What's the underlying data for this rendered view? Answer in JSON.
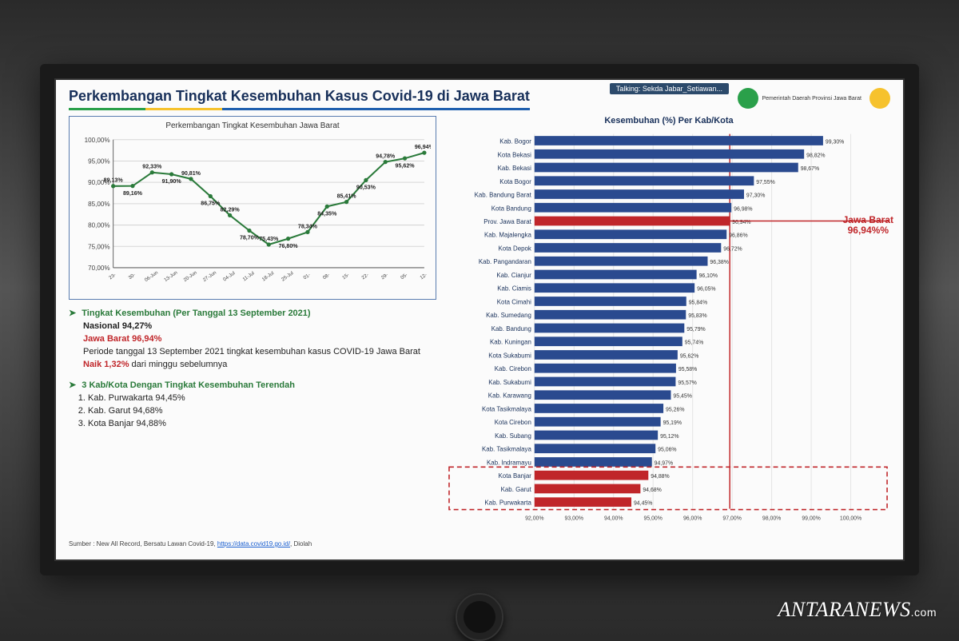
{
  "header": {
    "title": "Perkembangan Tingkat Kesembuhan Kasus Covid-19 di Jawa Barat",
    "rule_colors": [
      "#2aa04a",
      "#f6c22d",
      "#1f5fae"
    ],
    "rule_weights": [
      1,
      1,
      4
    ],
    "talking": "Talking: Sekda Jabar_Setiawan...",
    "logo1_text": "Pemerintah Daerah Provinsi Jawa Barat",
    "logo1_color": "#2aa04a",
    "logo2_color": "#f6c22d"
  },
  "line_chart": {
    "title": "Perkembangan Tingkat Kesembuhan Jawa Barat",
    "ylim": [
      70,
      100
    ],
    "ystep": 5,
    "y_labels": [
      "70,00%",
      "75,00%",
      "80,00%",
      "85,00%",
      "90,00%",
      "95,00%",
      "100,00%"
    ],
    "x_labels": [
      "23-",
      "30-",
      "06-Jun",
      "13-Jun",
      "20-Jun",
      "27-Jun",
      "04-Jul",
      "11-Jul",
      "18-Jul",
      "25-Jul",
      "01-",
      "08-",
      "15-",
      "22-",
      "29-",
      "05-",
      "12-"
    ],
    "values": [
      89.13,
      89.16,
      92.33,
      91.9,
      90.81,
      86.75,
      82.29,
      78.7,
      75.43,
      76.8,
      78.34,
      84.35,
      85.41,
      90.53,
      94.78,
      95.62,
      96.94
    ],
    "point_labels": [
      "89,13%",
      "89,16%",
      "92,33%",
      "91,90%",
      "90,81%",
      "86,75%",
      "82,29%",
      "78,70%",
      "75,43%",
      "76,80%",
      "78,34%",
      "84,35%",
      "85,41%",
      "90,53%",
      "94,78%",
      "95,62%",
      "96,94%"
    ],
    "line_color": "#2a7a3a",
    "grid_color": "#d6d6d6",
    "border_color": "#5a7db0"
  },
  "bullets": {
    "b1_head": "Tingkat Kesembuhan  (Per Tanggal 13 September 2021)",
    "b1_l1": "Nasional 94,27%",
    "b1_l2": "Jawa Barat 96,94%",
    "b1_l3a": "Periode tanggal 13 September 2021 tingkat kesembuhan kasus COVID-19 Jawa Barat ",
    "b1_l3b": "Naik 1,32%",
    "b1_l3c": " dari minggu sebelumnya",
    "b2_head": "3 Kab/Kota Dengan Tingkat Kesembuhan Terendah",
    "b2_items": [
      "Kab. Purwakarta 94,45%",
      "Kab. Garut 94,68%",
      "Kota Banjar 94,88%"
    ]
  },
  "source": {
    "prefix": "Sumber : New All Record, Bersatu Lawan Covid-19, ",
    "link": "https://data.covid19.go.id/",
    "suffix": ", Diolah"
  },
  "bar_chart": {
    "title": "Kesembuhan (%) Per Kab/Kota",
    "xlim": [
      92,
      100
    ],
    "xstep": 1,
    "x_labels": [
      "92,00%",
      "93,00%",
      "94,00%",
      "95,00%",
      "96,00%",
      "97,00%",
      "98,00%",
      "99,00%",
      "100,00%"
    ],
    "callout_line1": "Jawa Barat",
    "callout_line2": "96,94%%",
    "color_normal": "#2a4a8f",
    "color_highlight": "#c0262a",
    "reference_value": 96.94,
    "reference_row_index": 6,
    "bottom_box_from": 25,
    "rows": [
      {
        "label": "Kab. Bogor",
        "value": 99.3,
        "text": "99,30%",
        "hi": false
      },
      {
        "label": "Kota Bekasi",
        "value": 98.82,
        "text": "98,82%",
        "hi": false
      },
      {
        "label": "Kab. Bekasi",
        "value": 98.67,
        "text": "98,67%",
        "hi": false
      },
      {
        "label": "Kota Bogor",
        "value": 97.55,
        "text": "97,55%",
        "hi": false
      },
      {
        "label": "Kab. Bandung Barat",
        "value": 97.3,
        "text": "97,30%",
        "hi": false
      },
      {
        "label": "Kota Bandung",
        "value": 96.98,
        "text": "96,98%",
        "hi": false
      },
      {
        "label": "Prov. Jawa Barat",
        "value": 96.94,
        "text": "96,94%",
        "hi": true
      },
      {
        "label": "Kab. Majalengka",
        "value": 96.86,
        "text": "96,86%",
        "hi": false
      },
      {
        "label": "Kota Depok",
        "value": 96.72,
        "text": "96,72%",
        "hi": false
      },
      {
        "label": "Kab. Pangandaran",
        "value": 96.38,
        "text": "96,38%",
        "hi": false
      },
      {
        "label": "Kab. Cianjur",
        "value": 96.1,
        "text": "96,10%",
        "hi": false
      },
      {
        "label": "Kab. Ciamis",
        "value": 96.05,
        "text": "96,05%",
        "hi": false
      },
      {
        "label": "Kota Cimahi",
        "value": 95.84,
        "text": "95,84%",
        "hi": false
      },
      {
        "label": "Kab. Sumedang",
        "value": 95.83,
        "text": "95,83%",
        "hi": false
      },
      {
        "label": "Kab. Bandung",
        "value": 95.79,
        "text": "95,79%",
        "hi": false
      },
      {
        "label": "Kab. Kuningan",
        "value": 95.74,
        "text": "95,74%",
        "hi": false
      },
      {
        "label": "Kota Sukabumi",
        "value": 95.62,
        "text": "95,62%",
        "hi": false
      },
      {
        "label": "Kab. Cirebon",
        "value": 95.58,
        "text": "95,58%",
        "hi": false
      },
      {
        "label": "Kab. Sukabumi",
        "value": 95.57,
        "text": "95,57%",
        "hi": false
      },
      {
        "label": "Kab. Karawang",
        "value": 95.45,
        "text": "95,45%",
        "hi": false
      },
      {
        "label": "Kota Tasikmalaya",
        "value": 95.26,
        "text": "95,26%",
        "hi": false
      },
      {
        "label": "Kota Cirebon",
        "value": 95.19,
        "text": "95,19%",
        "hi": false
      },
      {
        "label": "Kab. Subang",
        "value": 95.12,
        "text": "95,12%",
        "hi": false
      },
      {
        "label": "Kab. Tasikmalaya",
        "value": 95.06,
        "text": "95,06%",
        "hi": false
      },
      {
        "label": "Kab. Indramayu",
        "value": 94.97,
        "text": "94,97%",
        "hi": false
      },
      {
        "label": "Kota Banjar",
        "value": 94.88,
        "text": "94,88%",
        "hi": true
      },
      {
        "label": "Kab. Garut",
        "value": 94.68,
        "text": "94,68%",
        "hi": true
      },
      {
        "label": "Kab. Purwakarta",
        "value": 94.45,
        "text": "94,45%",
        "hi": true
      }
    ]
  },
  "watermark": {
    "brand": "ANTARANEWS",
    "suffix": ".com"
  }
}
